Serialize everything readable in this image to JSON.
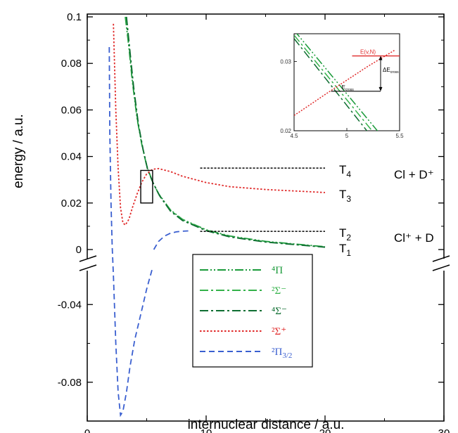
{
  "chart_data": {
    "type": "line",
    "xlabel": "internuclear distance / a.u.",
    "ylabel": "energy / a.u.",
    "xlim": [
      0,
      30
    ],
    "ylim_upper": [
      0,
      0.1
    ],
    "ylim_lower": [
      -0.1,
      -0.02
    ],
    "x_ticks": [
      "0",
      "10",
      "20",
      "30"
    ],
    "y_ticks_upper": [
      "0",
      "0.02",
      "0.04",
      "0.06",
      "0.08",
      "0.1"
    ],
    "y_ticks_lower": [
      "-0.04",
      "-0.08"
    ],
    "axis_break": true,
    "series": [
      {
        "name": "⁴Π",
        "color": "#1a9a3a",
        "dash": "dashdotdot",
        "x": [
          3.2,
          3.5,
          3.8,
          4.2,
          4.6,
          5.0,
          5.5,
          6.0,
          7.0,
          8.0,
          10.0,
          12.0,
          15.0,
          20.0
        ],
        "y": [
          0.1,
          0.087,
          0.072,
          0.056,
          0.045,
          0.036,
          0.029,
          0.024,
          0.017,
          0.013,
          0.0085,
          0.0058,
          0.0035,
          0.0012
        ]
      },
      {
        "name": "²Σ⁻",
        "color": "#34b24a",
        "dash": "dashdot",
        "x": [
          3.25,
          3.55,
          3.85,
          4.25,
          4.65,
          5.05,
          5.55,
          6.05,
          7.0,
          8.0,
          10.0,
          12.0,
          15.0,
          20.0
        ],
        "y": [
          0.1,
          0.086,
          0.071,
          0.055,
          0.044,
          0.035,
          0.0285,
          0.0235,
          0.0168,
          0.0128,
          0.0083,
          0.0056,
          0.0033,
          0.0011
        ]
      },
      {
        "name": "⁴Σ⁻",
        "color": "#0f6e32",
        "dash": "dashdot",
        "x": [
          3.3,
          3.6,
          3.9,
          4.3,
          4.7,
          5.1,
          5.6,
          6.1,
          7.0,
          8.0,
          10.0,
          12.0,
          15.0,
          20.0
        ],
        "y": [
          0.1,
          0.085,
          0.07,
          0.054,
          0.043,
          0.034,
          0.028,
          0.023,
          0.0165,
          0.0125,
          0.0081,
          0.0054,
          0.0032,
          0.001
        ]
      },
      {
        "name": "²Σ⁺",
        "color": "#e02a2a",
        "dash": "dotted",
        "x": [
          2.2,
          2.4,
          2.6,
          2.8,
          3.0,
          3.2,
          3.5,
          3.8,
          4.2,
          4.6,
          5.0,
          5.5,
          6.0,
          7.0,
          8.0,
          10.0,
          12.0,
          15.0,
          20.0
        ],
        "y": [
          0.097,
          0.06,
          0.035,
          0.018,
          0.0115,
          0.0105,
          0.013,
          0.018,
          0.024,
          0.029,
          0.0325,
          0.0345,
          0.0348,
          0.0335,
          0.0315,
          0.0288,
          0.027,
          0.0258,
          0.0245
        ]
      },
      {
        "name": "²Π₃/₂",
        "color": "#3a5fd0",
        "dash": "dashed",
        "x": [
          1.85,
          1.9,
          2.0,
          2.1,
          2.2,
          2.4,
          2.6,
          2.8,
          3.0,
          3.3,
          3.6,
          4.0,
          4.5,
          5.0,
          5.5
        ],
        "y": [
          0.087,
          0.05,
          0.02,
          0.001,
          -0.025,
          -0.06,
          -0.085,
          -0.097,
          -0.095,
          -0.085,
          -0.072,
          -0.058,
          -0.045,
          -0.032,
          -0.021
        ]
      },
      {
        "name": "",
        "color": "#3a5fd0",
        "dash": "dashed",
        "x": [
          5.6,
          6.0,
          6.5,
          7.0,
          7.5,
          8.0,
          8.5
        ],
        "y": [
          0.0,
          0.0035,
          0.0058,
          0.007,
          0.0076,
          0.0079,
          0.008
        ]
      }
    ],
    "asymptotes": [
      {
        "label": "T4",
        "y": 0.035,
        "x": [
          9.5,
          20
        ],
        "extra": "Cl + D⁺"
      },
      {
        "label": "T3",
        "y": 0.0245,
        "x": null,
        "extra": ""
      },
      {
        "label": "T2",
        "y": 0.0078,
        "x": [
          9.5,
          20
        ],
        "extra": "Cl⁺ + D"
      },
      {
        "label": "T1",
        "y": 0.0012,
        "x": null,
        "extra": ""
      }
    ],
    "zoom_box": {
      "x": [
        4.5,
        5.5
      ],
      "y": [
        0.02,
        0.034
      ]
    },
    "inset": {
      "xlim": [
        4.5,
        5.5
      ],
      "ylim": [
        0.02,
        0.034
      ],
      "x_ticks": [
        "4.5",
        "5",
        "5.5"
      ],
      "y_ticks": [
        "0.02",
        "0.03"
      ],
      "level_label": "E(v,N)",
      "crossing_label_main": "E",
      "crossing_label_sub": "cross",
      "gap_label_main": "ΔE",
      "gap_label_sub": "cross"
    },
    "legend": {
      "entries": [
        {
          "main": "⁴Π",
          "sub": "",
          "color": "#1a9a3a",
          "dash": "dashdotdot"
        },
        {
          "main": "²Σ⁻",
          "sub": "",
          "color": "#34b24a",
          "dash": "dashdot"
        },
        {
          "main": "⁴Σ⁻",
          "sub": "",
          "color": "#0f6e32",
          "dash": "dashdot"
        },
        {
          "main": "²Σ⁺",
          "sub": "",
          "color": "#e02a2a",
          "dash": "dotted"
        },
        {
          "main": "²Π",
          "sub": "3/2",
          "color": "#3a5fd0",
          "dash": "dashed"
        }
      ]
    }
  }
}
